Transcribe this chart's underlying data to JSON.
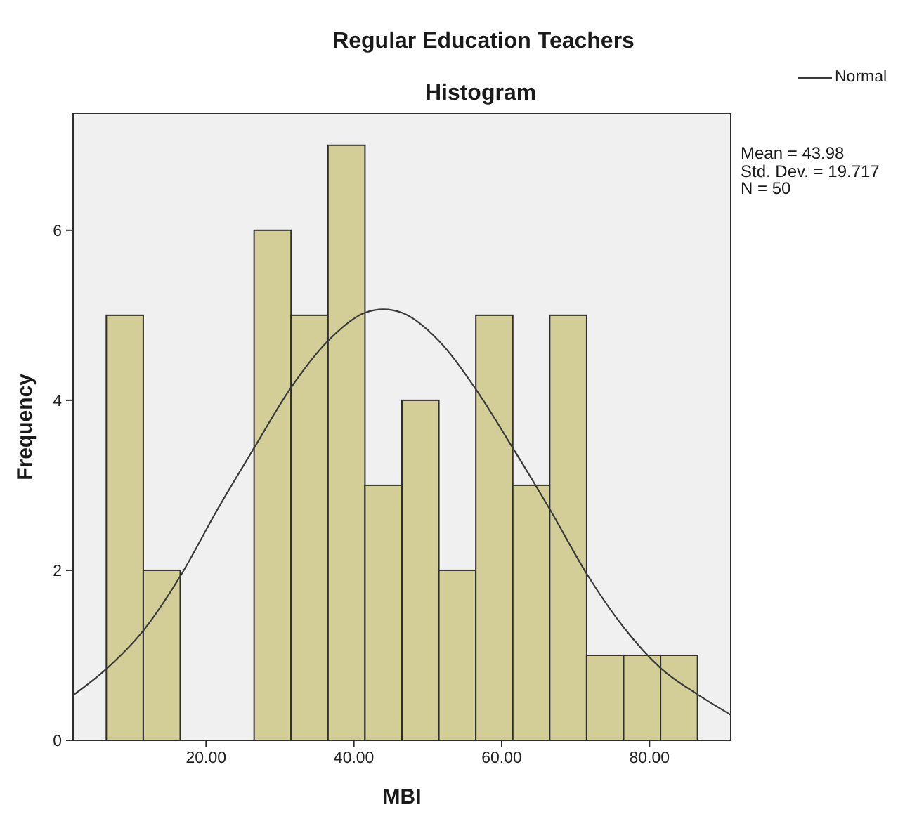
{
  "chart_data": {
    "type": "histogram",
    "title": "Regular Education Teachers",
    "subtitle": "Histogram",
    "xlabel": "MBI",
    "ylabel": "Frequency",
    "bins": [
      6.5,
      11.5,
      16.5,
      21.5,
      26.5,
      31.5,
      36.5,
      41.5,
      46.5,
      51.5,
      56.5,
      61.5,
      66.5,
      71.5,
      76.5,
      81.5,
      86.5
    ],
    "series": [
      {
        "color": "#d3ce97",
        "values": [
          5,
          2,
          0,
          0,
          6,
          5,
          7,
          3,
          4,
          2,
          5,
          3,
          5,
          1,
          1,
          1
        ]
      },
      {
        "name": "Normal",
        "type": "line",
        "color": "#3a3a3a",
        "x": [
          2,
          6.5,
          11.5,
          16.5,
          21.5,
          26.5,
          31.5,
          36.5,
          41.5,
          44,
          46.5,
          51.5,
          56.5,
          61.5,
          66.5,
          71.5,
          76.5,
          81.5,
          86.5,
          91
        ],
        "values": [
          0.53,
          0.84,
          1.29,
          1.93,
          2.71,
          3.44,
          4.15,
          4.7,
          5.03,
          5.07,
          5.03,
          4.7,
          4.13,
          3.44,
          2.72,
          1.96,
          1.33,
          0.85,
          0.54,
          0.3
        ]
      }
    ],
    "xlim": [
      2,
      91
    ],
    "xticks": [
      {
        "value": 20,
        "label": "20.00"
      },
      {
        "value": 40,
        "label": "40.00"
      },
      {
        "value": 60,
        "label": "60.00"
      },
      {
        "value": 80,
        "label": "80.00"
      }
    ],
    "ylim": [
      0,
      7.37
    ],
    "yticks": [
      0,
      2,
      4,
      6
    ],
    "grid": false,
    "legend": "top right",
    "marker": "none",
    "line_style": "solid",
    "annotations": [
      "Mean = 43.98",
      "Std. Dev. = 19.717",
      "N = 50"
    ]
  }
}
